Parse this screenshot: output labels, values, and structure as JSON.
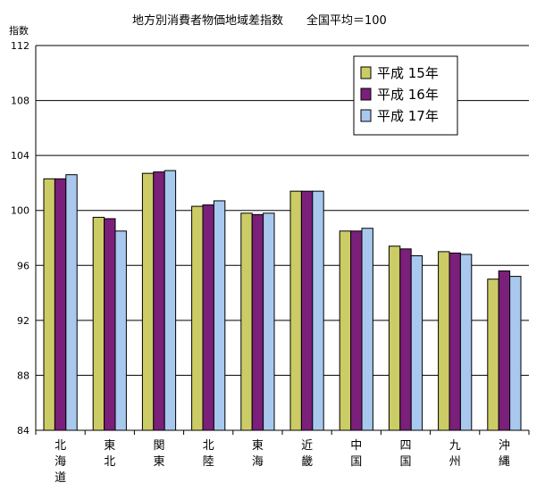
{
  "chart_data": {
    "type": "bar",
    "title": "地方別消費者物価地域差指数　　全国平均＝100",
    "ylabel": "指数",
    "xlabel": "",
    "ylim": [
      84,
      112
    ],
    "yticks": [
      84,
      88,
      92,
      96,
      100,
      104,
      108,
      112
    ],
    "grid": true,
    "legend_position": "top-right",
    "categories": [
      "北海道",
      "東北",
      "関東",
      "北陸",
      "東海",
      "近畿",
      "中国",
      "四国",
      "九州",
      "沖縄"
    ],
    "series": [
      {
        "name": "平成 15年",
        "color": "#cccc66",
        "values": [
          102.3,
          99.5,
          102.7,
          100.3,
          99.8,
          101.4,
          98.5,
          97.4,
          97.0,
          95.0
        ]
      },
      {
        "name": "平成 16年",
        "color": "#7a1f7a",
        "values": [
          102.3,
          99.4,
          102.8,
          100.4,
          99.7,
          101.4,
          98.5,
          97.2,
          96.9,
          95.6
        ]
      },
      {
        "name": "平成 17年",
        "color": "#a8c8ee",
        "values": [
          102.6,
          98.5,
          102.9,
          100.7,
          99.8,
          101.4,
          98.7,
          96.7,
          96.8,
          95.2
        ]
      }
    ]
  }
}
